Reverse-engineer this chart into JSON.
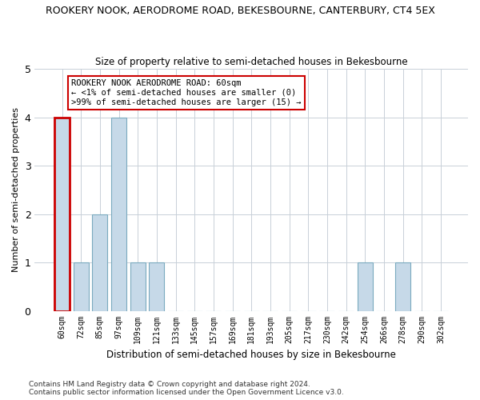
{
  "title": "ROOKERY NOOK, AERODROME ROAD, BEKESBOURNE, CANTERBURY, CT4 5EX",
  "subtitle": "Size of property relative to semi-detached houses in Bekesbourne",
  "xlabel": "Distribution of semi-detached houses by size in Bekesbourne",
  "ylabel": "Number of semi-detached properties",
  "footer_line1": "Contains HM Land Registry data © Crown copyright and database right 2024.",
  "footer_line2": "Contains public sector information licensed under the Open Government Licence v3.0.",
  "categories": [
    "60sqm",
    "72sqm",
    "85sqm",
    "97sqm",
    "109sqm",
    "121sqm",
    "133sqm",
    "145sqm",
    "157sqm",
    "169sqm",
    "181sqm",
    "193sqm",
    "205sqm",
    "217sqm",
    "230sqm",
    "242sqm",
    "254sqm",
    "266sqm",
    "278sqm",
    "290sqm",
    "302sqm"
  ],
  "values": [
    4,
    1,
    2,
    4,
    1,
    1,
    0,
    0,
    0,
    0,
    0,
    0,
    0,
    0,
    0,
    0,
    1,
    0,
    1,
    0,
    0
  ],
  "highlight_index": 0,
  "bar_color": "#c6d9e8",
  "bar_edge_color": "#7aaabf",
  "highlight_bar_edge_color": "#cc0000",
  "ylim": [
    0,
    5
  ],
  "yticks": [
    0,
    1,
    2,
    3,
    4,
    5
  ],
  "annotation_title": "ROOKERY NOOK AERODROME ROAD: 60sqm",
  "annotation_line1": "← <1% of semi-detached houses are smaller (0)",
  "annotation_line2": ">99% of semi-detached houses are larger (15) →",
  "annotation_box_color": "#ffffff",
  "annotation_box_edge_color": "#cc0000",
  "grid_color": "#c8d0d8",
  "bg_color": "#ffffff",
  "plot_bg_color": "#ffffff",
  "title_fontsize": 9,
  "subtitle_fontsize": 8.5
}
